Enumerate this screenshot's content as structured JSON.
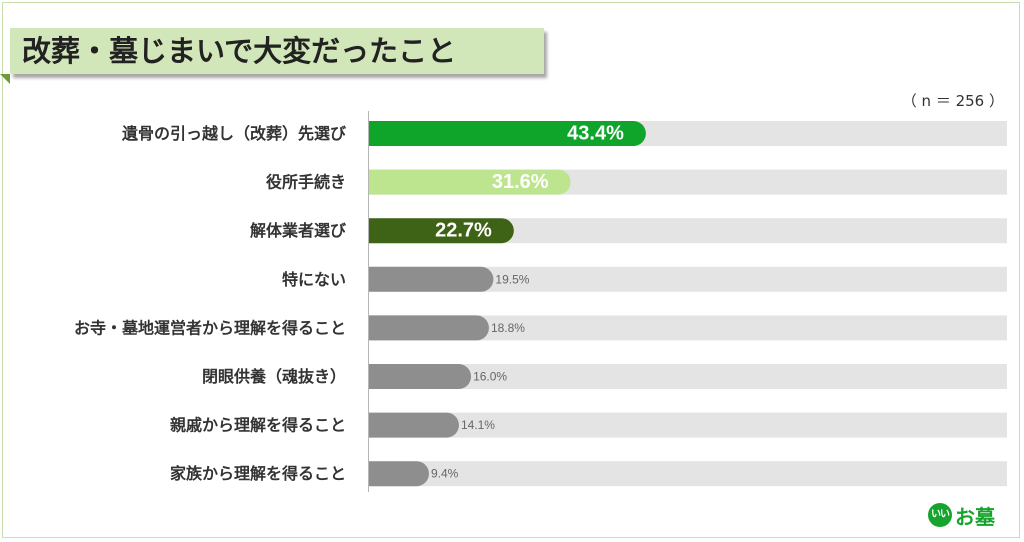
{
  "header": {
    "title": "改葬・墓じまいで大変だったこと"
  },
  "chart_data": {
    "type": "bar",
    "orientation": "horizontal",
    "title": "改葬・墓じまいで大変だったこと",
    "note": "（ n ＝ 256 ）",
    "xlim": [
      0,
      100
    ],
    "categories": [
      "遺骨の引っ越し（改葬）先選び",
      "役所手続き",
      "解体業者選び",
      "特にない",
      "お寺・墓地運営者から理解を得ること",
      "閉眼供養（魂抜き）",
      "親戚から理解を得ること",
      "家族から理解を得ること"
    ],
    "values": [
      43.4,
      31.6,
      22.7,
      19.5,
      18.8,
      16.0,
      14.1,
      9.4
    ],
    "value_labels": [
      "43.4%",
      "31.6%",
      "22.7%",
      "19.5%",
      "18.8%",
      "16.0%",
      "14.1%",
      "9.4%"
    ],
    "bar_colors": [
      "#0fa52b",
      "#bde48f",
      "#3f6316",
      "#8e8e8e",
      "#8e8e8e",
      "#8e8e8e",
      "#8e8e8e",
      "#8e8e8e"
    ],
    "track_color": "#e4e4e4"
  },
  "logo": {
    "icon_text": "いい",
    "text": "お墓",
    "color": "#16a32e"
  }
}
